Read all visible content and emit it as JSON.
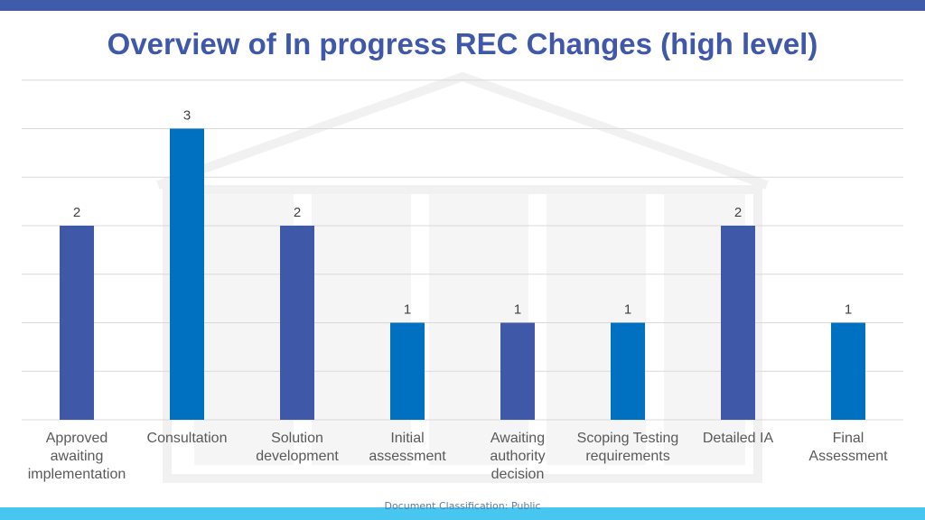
{
  "title": "Overview of In progress REC Changes (high level)",
  "footer": "Document Classification: Public",
  "chart_data": {
    "type": "bar",
    "title": "Overview of In progress REC Changes (high level)",
    "categories": [
      "Approved awaiting implementation",
      "Consultation",
      "Solution development",
      "Initial assessment",
      "Awaiting authority decision",
      "Scoping Testing requirements",
      "Detailed IA",
      "Final Assessment"
    ],
    "values": [
      2,
      3,
      2,
      1,
      1,
      1,
      2,
      1
    ],
    "ylim": [
      0,
      3.5
    ],
    "grid": true,
    "xlabel": "",
    "ylabel": "",
    "colors": [
      "#3f58a8",
      "#0070c0"
    ]
  },
  "theme": {
    "accent": "#3f5ba9",
    "bottom_bar": "#47c6f0",
    "label_color": "#595959",
    "grid_color": "#d9d9d9"
  }
}
